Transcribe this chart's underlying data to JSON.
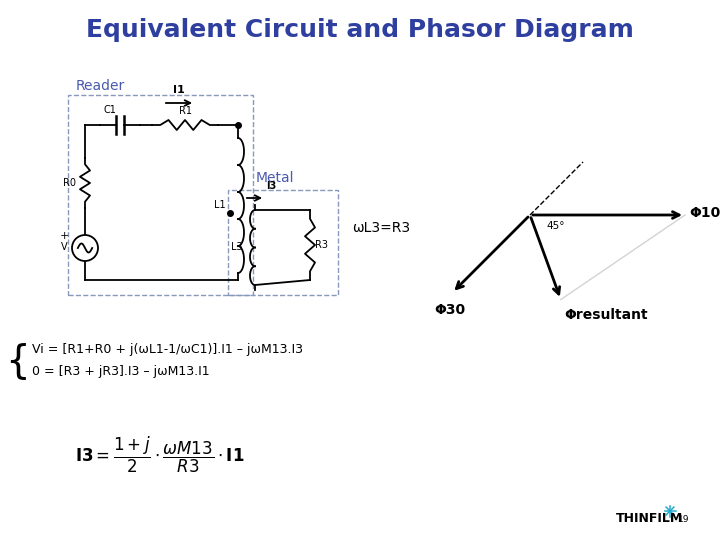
{
  "title": "Equivalent Circuit and Phasor Diagram",
  "title_color": "#2e3f9f",
  "title_fontsize": 18,
  "bg_color": "#ffffff",
  "reader_label": "Reader",
  "metal_label": "Metal",
  "label_color": "#4a5ab0",
  "eq1": "Vi = [R1+R0 + j(ωL1-1/ωC1)].I1 – jωM13.I3",
  "eq2": "0 = [R3 + jR3].I3 – jωM13.I1",
  "phi10_label": "Φ10",
  "phi30_label": "Φ30",
  "phi_res_label": "Φresultant",
  "angle45_label": "45°",
  "logo_text": "THINFILM",
  "wL3_label": "ωL3=R3"
}
